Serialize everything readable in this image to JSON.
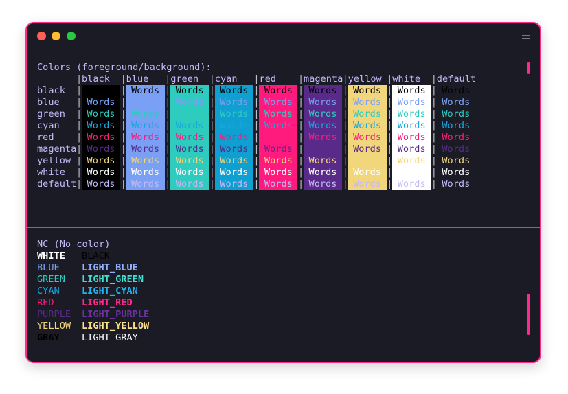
{
  "window": {
    "traffic_lights": [
      {
        "name": "close",
        "color": "#ff5f57"
      },
      {
        "name": "minimize",
        "color": "#febc2e"
      },
      {
        "name": "zoom",
        "color": "#28c840"
      }
    ],
    "menu_icon": "hamburger-menu-icon",
    "accent_color": "#ff2a8c"
  },
  "color_table": {
    "heading": "Colors (foreground/background):",
    "sample_word": "Words",
    "columns": [
      {
        "name": "black",
        "bg": "#000000"
      },
      {
        "name": "blue",
        "bg": "#7aa0f5"
      },
      {
        "name": "green",
        "bg": "#2ecbbf"
      },
      {
        "name": "cyan",
        "bg": "#0f9fd0"
      },
      {
        "name": "red",
        "bg": "#ff1a7d"
      },
      {
        "name": "magenta",
        "bg": "#5a2a8a"
      },
      {
        "name": "yellow",
        "bg": "#f1d67c"
      },
      {
        "name": "white",
        "bg": "#ffffff"
      },
      {
        "name": "default",
        "bg": ""
      }
    ],
    "rows": [
      {
        "name": "black",
        "fg": "#000000"
      },
      {
        "name": "blue",
        "fg": "#7aa0f5"
      },
      {
        "name": "green",
        "fg": "#2ecbbf"
      },
      {
        "name": "cyan",
        "fg": "#1aa6e0"
      },
      {
        "name": "red",
        "fg": "#ff1a7d"
      },
      {
        "name": "magenta",
        "fg": "#5a2a8a"
      },
      {
        "name": "yellow",
        "fg": "#f1d67c"
      },
      {
        "name": "white",
        "fg": "#ffffff"
      },
      {
        "name": "default",
        "fg": "#c3b9f6"
      }
    ]
  },
  "nc_list": {
    "heading": "NC (No color)",
    "pairs": [
      {
        "left": "WHITE",
        "left_color": "#ffffff",
        "left_bold": true,
        "right": "BLACK",
        "right_color": "#000000",
        "right_bold": false
      },
      {
        "left": "BLUE",
        "left_color": "#7aa0f5",
        "left_bold": false,
        "right": "LIGHT_BLUE",
        "right_color": "#8fb2ff",
        "right_bold": true
      },
      {
        "left": "GREEN",
        "left_color": "#2ecbbf",
        "left_bold": false,
        "right": "LIGHT_GREEN",
        "right_color": "#3fe0d2",
        "right_bold": true
      },
      {
        "left": "CYAN",
        "left_color": "#1aa6e0",
        "left_bold": false,
        "right": "LIGHT_CYAN",
        "right_color": "#1fb4ee",
        "right_bold": true
      },
      {
        "left": "RED",
        "left_color": "#ff1a7d",
        "left_bold": false,
        "right": "LIGHT_RED",
        "right_color": "#ff2a8c",
        "right_bold": true
      },
      {
        "left": "PURPLE",
        "left_color": "#5a2a8a",
        "left_bold": false,
        "right": "LIGHT_PURPLE",
        "right_color": "#6a34a0",
        "right_bold": true
      },
      {
        "left": "YELLOW",
        "left_color": "#f1d67c",
        "left_bold": false,
        "right": "LIGHT_YELLOW",
        "right_color": "#ffe08a",
        "right_bold": true
      },
      {
        "left": "GRAY",
        "left_color": "#000000",
        "left_bold": true,
        "right": "LIGHT GRAY",
        "right_color": "#ffffff",
        "right_bold": false
      }
    ]
  }
}
